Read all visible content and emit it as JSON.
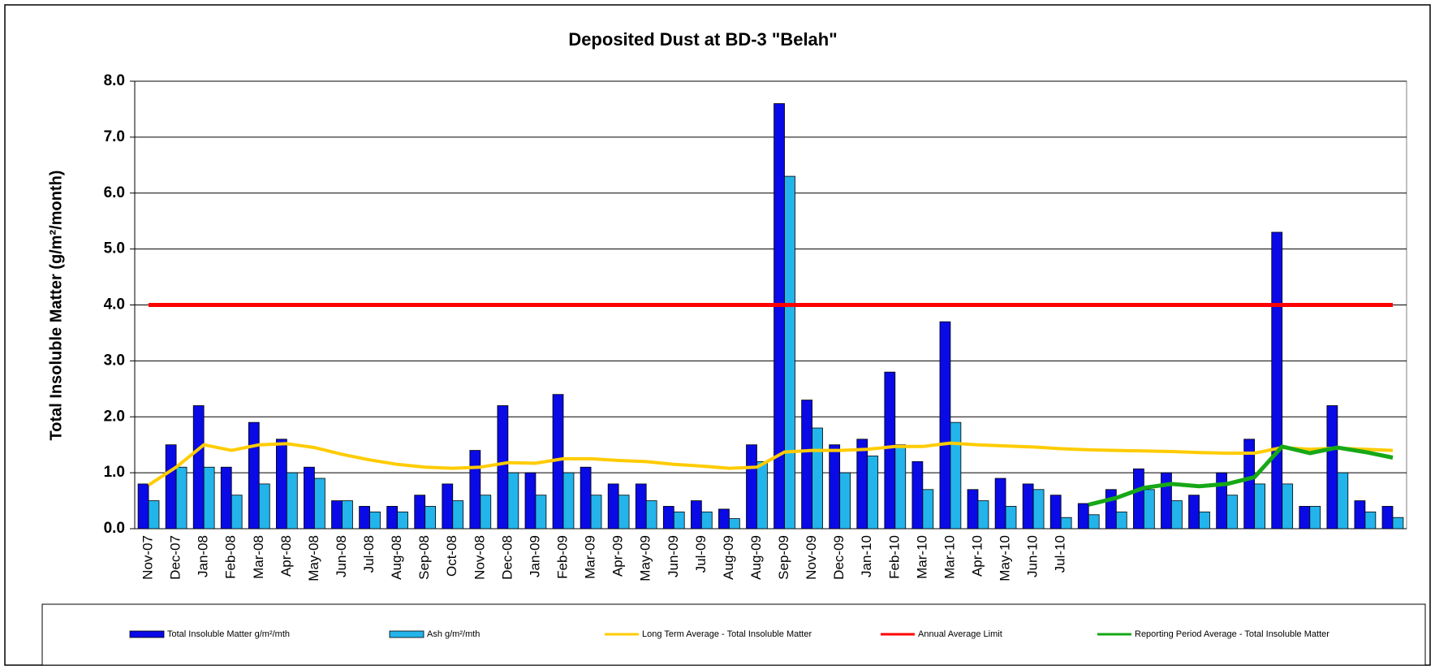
{
  "chart_data": {
    "type": "bar",
    "title": "Deposited Dust at BD-3 \"Belah\"",
    "y_label": "Total Insoluble Matter (g/m²/month)",
    "categories": [
      "Nov-07",
      "Dec-07",
      "Jan-08",
      "Feb-08",
      "Mar-08",
      "Apr-08",
      "May-08",
      "Jun-08",
      "Jul-08",
      "Aug-08",
      "Sep-08",
      "Oct-08",
      "Nov-08",
      "Dec-08",
      "Jan-09",
      "Feb-09",
      "Mar-09",
      "Apr-09",
      "May-09",
      "Jun-09",
      "Jul-09",
      "Aug-09",
      "Aug-09",
      "Sep-09",
      "Nov-09",
      "Dec-09",
      "Jan-10",
      "Feb-10",
      "Mar-10",
      "Mar-10",
      "Apr-10",
      "May-10",
      "Jun-10",
      "Jul-10",
      null,
      null,
      null,
      null,
      null,
      null,
      null,
      null,
      null,
      null,
      null,
      null
    ],
    "series": [
      {
        "name": "Total Insoluble Matter  g/m²/mth",
        "type": "bar",
        "color": "#0a0ae6",
        "values": [
          0.8,
          1.5,
          2.2,
          1.1,
          1.9,
          1.6,
          1.1,
          0.5,
          0.4,
          0.4,
          0.6,
          0.8,
          1.4,
          2.2,
          1.0,
          2.4,
          1.1,
          0.8,
          0.8,
          0.4,
          0.5,
          0.35,
          1.5,
          7.6,
          2.3,
          1.5,
          1.6,
          2.8,
          1.2,
          3.7,
          0.7,
          0.9,
          0.8,
          0.6,
          0.45,
          0.7,
          1.07,
          1.0,
          0.6,
          1.0,
          1.6,
          5.3,
          0.4,
          2.2,
          0.5,
          0.4
        ]
      },
      {
        "name": "Ash  g/m²/mth",
        "type": "bar",
        "color": "#22b4ea",
        "values": [
          0.5,
          1.1,
          1.1,
          0.6,
          0.8,
          1.0,
          0.9,
          0.5,
          0.3,
          0.3,
          0.4,
          0.5,
          0.6,
          1.0,
          0.6,
          1.0,
          0.6,
          0.6,
          0.5,
          0.3,
          0.3,
          0.18,
          1.2,
          6.3,
          1.8,
          1.0,
          1.3,
          1.5,
          0.7,
          1.9,
          0.5,
          0.4,
          0.7,
          0.2,
          0.25,
          0.3,
          0.7,
          0.5,
          0.3,
          0.6,
          0.8,
          0.8,
          0.4,
          1.0,
          0.3,
          0.2
        ]
      },
      {
        "name": "Long Term Average - Total Insoluble Matter",
        "type": "line",
        "color": "#ffcc00",
        "width": 4,
        "values": [
          0.78,
          1.1,
          1.5,
          1.4,
          1.5,
          1.52,
          1.45,
          1.33,
          1.23,
          1.15,
          1.1,
          1.08,
          1.1,
          1.18,
          1.17,
          1.25,
          1.25,
          1.22,
          1.2,
          1.15,
          1.12,
          1.08,
          1.1,
          1.37,
          1.4,
          1.4,
          1.42,
          1.47,
          1.47,
          1.53,
          1.5,
          1.48,
          1.46,
          1.43,
          1.41,
          1.4,
          1.39,
          1.38,
          1.36,
          1.35,
          1.35,
          1.45,
          1.42,
          1.44,
          1.42,
          1.4
        ]
      },
      {
        "name": "Annual Average Limit",
        "type": "line",
        "color": "#ff0000",
        "width": 5,
        "values": [
          4,
          4,
          4,
          4,
          4,
          4,
          4,
          4,
          4,
          4,
          4,
          4,
          4,
          4,
          4,
          4,
          4,
          4,
          4,
          4,
          4,
          4,
          4,
          4,
          4,
          4,
          4,
          4,
          4,
          4,
          4,
          4,
          4,
          4,
          4,
          4,
          4,
          4,
          4,
          4,
          4,
          4,
          4,
          4,
          4,
          4
        ]
      },
      {
        "name": "Reporting Period Average - Total Insoluble Matter",
        "type": "line",
        "color": "#16a816",
        "width": 5,
        "values": [
          null,
          null,
          null,
          null,
          null,
          null,
          null,
          null,
          null,
          null,
          null,
          null,
          null,
          null,
          null,
          null,
          null,
          null,
          null,
          null,
          null,
          null,
          null,
          null,
          null,
          null,
          null,
          null,
          null,
          null,
          null,
          null,
          null,
          null,
          0.43,
          0.55,
          0.73,
          0.8,
          0.76,
          0.8,
          0.92,
          1.47,
          1.35,
          1.45,
          1.37,
          1.27
        ]
      }
    ],
    "ylim": [
      0,
      8
    ],
    "yticks": [
      {
        "value": 0,
        "label": "0.0"
      },
      {
        "value": 1,
        "label": "1.0"
      },
      {
        "value": 2,
        "label": "2.0"
      },
      {
        "value": 3,
        "label": "3.0"
      },
      {
        "value": 4,
        "label": "4.0"
      },
      {
        "value": 5,
        "label": "5.0"
      },
      {
        "value": 6,
        "label": "6.0"
      },
      {
        "value": 7,
        "label": "7.0"
      },
      {
        "value": 8,
        "label": "8.0"
      }
    ],
    "grid": true,
    "legend": "bottom"
  }
}
